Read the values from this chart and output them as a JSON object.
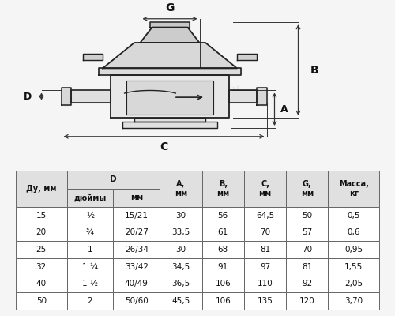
{
  "bg_color": "#f5f5f5",
  "table_header_bg": "#e0e0e0",
  "table_bg": "#ffffff",
  "table_border": "#666666",
  "line_color": "#222222",
  "text_color": "#111111",
  "dim_color": "#333333",
  "watermark_color": "#cccccc",
  "rows": [
    [
      "15",
      "½",
      "15/21",
      "30",
      "56",
      "64,5",
      "50",
      "0,5"
    ],
    [
      "20",
      "¾",
      "20/27",
      "33,5",
      "61",
      "70",
      "57",
      "0,6"
    ],
    [
      "25",
      "1",
      "26/34",
      "30",
      "68",
      "81",
      "70",
      "0,95"
    ],
    [
      "32",
      "1 ¼",
      "33/42",
      "34,5",
      "91",
      "97",
      "81",
      "1,55"
    ],
    [
      "40",
      "1 ½",
      "40/49",
      "36,5",
      "106",
      "110",
      "92",
      "2,05"
    ],
    [
      "50",
      "2",
      "50/60",
      "45,5",
      "106",
      "135",
      "120",
      "3,70"
    ]
  ]
}
